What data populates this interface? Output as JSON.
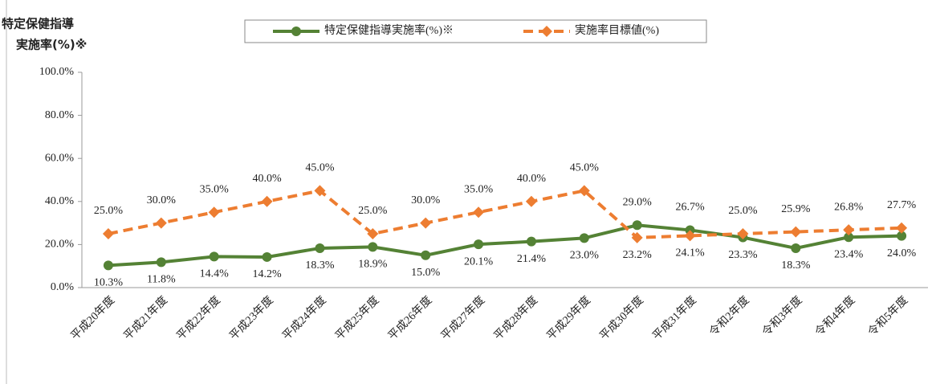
{
  "chart_data": {
    "type": "line",
    "y_label_lines": [
      "特定保健指導",
      "実施率(%)※"
    ],
    "categories": [
      "平成20年度",
      "平成21年度",
      "平成22年度",
      "平成23年度",
      "平成24年度",
      "平成25年度",
      "平成26年度",
      "平成27年度",
      "平成28年度",
      "平成29年度",
      "平成30年度",
      "平成31年度",
      "令和2年度",
      "令和3年度",
      "令和4年度",
      "令和5年度"
    ],
    "series": [
      {
        "name": "特定保健指導実施率(%)※",
        "color": "#548235",
        "marker": "circle",
        "dashed": false,
        "values": [
          10.3,
          11.8,
          14.4,
          14.2,
          18.3,
          18.9,
          15.0,
          20.1,
          21.4,
          23.0,
          29.0,
          26.7,
          23.3,
          18.3,
          23.4,
          24.0
        ],
        "value_labels": [
          "10.3%",
          "11.8%",
          "14.4%",
          "14.2%",
          "18.3%",
          "18.9%",
          "15.0%",
          "20.1%",
          "21.4%",
          "23.0%",
          "29.0%",
          "26.7%",
          "23.3%",
          "18.3%",
          "23.4%",
          "24.0%"
        ]
      },
      {
        "name": "実施率目標値(%)",
        "color": "#ed7d31",
        "marker": "diamond",
        "dashed": true,
        "values": [
          25.0,
          30.0,
          35.0,
          40.0,
          45.0,
          25.0,
          30.0,
          35.0,
          40.0,
          45.0,
          23.2,
          24.1,
          25.0,
          25.9,
          26.8,
          27.7
        ],
        "value_labels": [
          "25.0%",
          "30.0%",
          "35.0%",
          "40.0%",
          "45.0%",
          "25.0%",
          "30.0%",
          "35.0%",
          "40.0%",
          "45.0%",
          "23.2%",
          "24.1%",
          "25.0%",
          "25.9%",
          "26.8%",
          "27.7%"
        ]
      }
    ],
    "ylim": [
      0,
      100
    ],
    "yticks": [
      {
        "value": 0,
        "label": "0.0%"
      },
      {
        "value": 20,
        "label": "20.0%"
      },
      {
        "value": 40,
        "label": "40.0%"
      },
      {
        "value": 60,
        "label": "60.0%"
      },
      {
        "value": 80,
        "label": "80.0%"
      },
      {
        "value": 100,
        "label": "100.0%"
      }
    ],
    "grid": false
  }
}
